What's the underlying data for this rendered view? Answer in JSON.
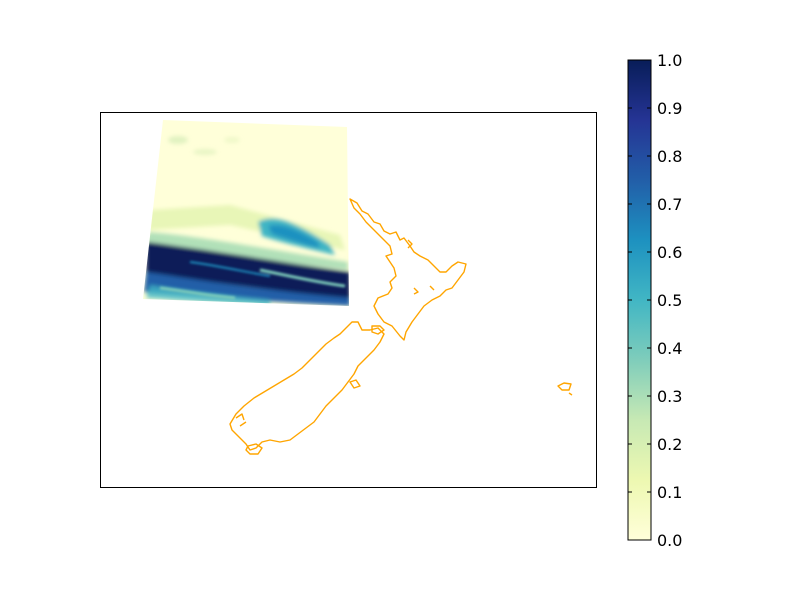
{
  "map": {
    "type": "filled-field-over-coastline",
    "region": "New Zealand",
    "coastline_color": "#FFA500",
    "frame_color": "#000000",
    "colormap": "YlGnBu",
    "colormap_stops": [
      "#FFFFD9",
      "#EDF8B1",
      "#C7E9B4",
      "#7FCDBB",
      "#41B6C4",
      "#1D91C0",
      "#225EA8",
      "#253494",
      "#081D58"
    ]
  },
  "colorbar": {
    "range": [
      0.0,
      1.0
    ],
    "tick_labels": [
      "0.0",
      "0.1",
      "0.2",
      "0.3",
      "0.4",
      "0.5",
      "0.6",
      "0.7",
      "0.8",
      "0.9",
      "1.0"
    ]
  }
}
